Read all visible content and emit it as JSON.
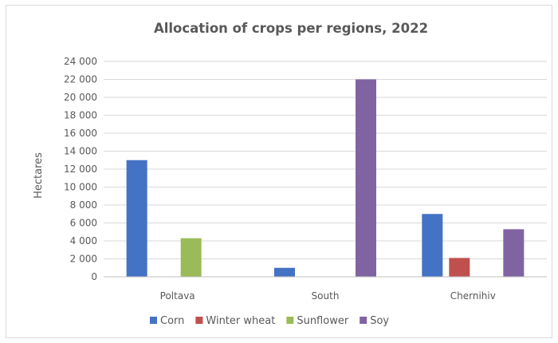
{
  "chart_data": {
    "type": "bar",
    "title": "Allocation of crops per regions, 2022",
    "xlabel": "",
    "ylabel": "Hectares",
    "categories": [
      "Poltava",
      "South",
      "Chernihiv"
    ],
    "series": [
      {
        "name": "Corn",
        "color": "#4472c4",
        "values": [
          13000,
          1000,
          7000
        ]
      },
      {
        "name": "Winter wheat",
        "color": "#c0504d",
        "values": [
          0,
          0,
          2100
        ]
      },
      {
        "name": "Sunflower",
        "color": "#9bbb59",
        "values": [
          4300,
          0,
          0
        ]
      },
      {
        "name": "Soy",
        "color": "#8064a2",
        "values": [
          0,
          22000,
          5300
        ]
      }
    ],
    "ylim": [
      0,
      24000
    ],
    "yticks": [
      0,
      2000,
      4000,
      6000,
      8000,
      10000,
      12000,
      14000,
      16000,
      18000,
      20000,
      22000,
      24000
    ],
    "ytick_labels": [
      "0",
      "2 000",
      "4 000",
      "6 000",
      "8 000",
      "10 000",
      "12 000",
      "14 000",
      "16 000",
      "18 000",
      "20 000",
      "22 000",
      "24 000"
    ],
    "grid": true,
    "legend_position": "bottom"
  }
}
